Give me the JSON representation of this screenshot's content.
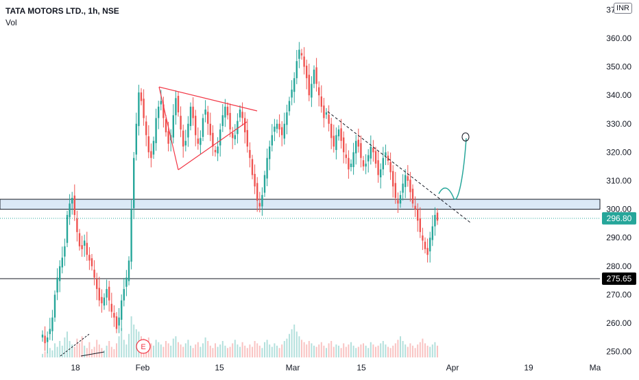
{
  "legend": {
    "title": "TATA MOTORS LTD., 1h, NSE",
    "volume_label": "Vol"
  },
  "currency": "INR",
  "earnings_marker": "E",
  "colors": {
    "up": "#26a69a",
    "down": "#ef5350",
    "drawing_red": "#f23645",
    "zone_fill": "#dbe9f6",
    "last_price_badge": "#26a69a",
    "level_badge": "#000000"
  },
  "chart_data": {
    "type": "candlestick",
    "symbol": "TATA MOTORS LTD.",
    "interval": "1h",
    "exchange": "NSE",
    "ylim": [
      248,
      372
    ],
    "y_ticks": [
      "250.00",
      "260.00",
      "270.00",
      "280.00",
      "290.00",
      "300.00",
      "310.00",
      "320.00",
      "330.00",
      "340.00",
      "350.00",
      "360.00",
      "370.00"
    ],
    "x_ticks": [
      "18",
      "Feb",
      "15",
      "Mar",
      "15",
      "Apr",
      "19",
      "Ma"
    ],
    "last_price": "296.80",
    "horizontal_level": "275.65",
    "support_zone": [
      300,
      303.5
    ],
    "series": [
      {
        "name": "price",
        "values": [
          256,
          253,
          255,
          258,
          262,
          270,
          276,
          280,
          283,
          287,
          298,
          302,
          304,
          298,
          292,
          287,
          286,
          289,
          284,
          282,
          280,
          276,
          272,
          268,
          267,
          269,
          272,
          268,
          264,
          262,
          258,
          262,
          268,
          272,
          276,
          282,
          300,
          318,
          330,
          341,
          338,
          332,
          326,
          320,
          318,
          324,
          332,
          336,
          338,
          332,
          327,
          323,
          326,
          333,
          339,
          334,
          328,
          322,
          324,
          330,
          336,
          332,
          326,
          323,
          325,
          332,
          335,
          330,
          326,
          322,
          320,
          322,
          328,
          333,
          336,
          333,
          328,
          325,
          326,
          331,
          335,
          332,
          327,
          322,
          318,
          312,
          308,
          303,
          301,
          305,
          312,
          318,
          322,
          326,
          329,
          330,
          328,
          326,
          330,
          334,
          338,
          342,
          346,
          352,
          356,
          354,
          350,
          346,
          340,
          344,
          349,
          344,
          340,
          336,
          332,
          334,
          330,
          325,
          322,
          326,
          328,
          324,
          320,
          318,
          314,
          316,
          320,
          324,
          322,
          318,
          315,
          316,
          319,
          322,
          320,
          316,
          312,
          314,
          318,
          320,
          317,
          313,
          308,
          304,
          302,
          305,
          309,
          312,
          310,
          306,
          302,
          300,
          296,
          292,
          289,
          286,
          284,
          290,
          294,
          298,
          296
        ]
      }
    ],
    "volume": [
      3,
      5,
      4,
      8,
      6,
      12,
      9,
      14,
      10,
      17,
      22,
      14,
      11,
      9,
      16,
      12,
      18,
      10,
      8,
      13,
      7,
      9,
      15,
      11,
      8,
      6,
      10,
      14,
      9,
      7,
      12,
      18,
      25,
      15,
      11,
      20,
      35,
      28,
      24,
      22,
      18,
      16,
      14,
      17,
      12,
      10,
      15,
      13,
      11,
      9,
      14,
      12,
      10,
      16,
      18,
      13,
      11,
      9,
      12,
      15,
      10,
      8,
      11,
      13,
      9,
      12,
      17,
      14,
      10,
      8,
      12,
      9,
      11,
      14,
      10,
      8,
      9,
      12,
      15,
      11,
      9,
      13,
      10,
      8,
      11,
      9,
      14,
      12,
      10,
      8,
      13,
      15,
      11,
      9,
      12,
      10,
      8,
      11,
      14,
      16,
      20,
      24,
      28,
      22,
      18,
      15,
      13,
      11,
      14,
      12,
      10,
      9,
      11,
      13,
      10,
      8,
      12,
      14,
      9,
      11,
      10,
      8,
      12,
      9,
      11,
      13,
      10,
      8,
      9,
      11,
      12,
      10,
      8,
      13,
      11,
      9,
      10,
      12,
      14,
      11,
      9,
      8,
      10,
      12,
      15,
      18,
      14,
      11,
      9,
      12,
      10,
      8,
      11,
      13,
      16,
      12,
      10,
      9,
      11,
      13,
      10
    ]
  }
}
